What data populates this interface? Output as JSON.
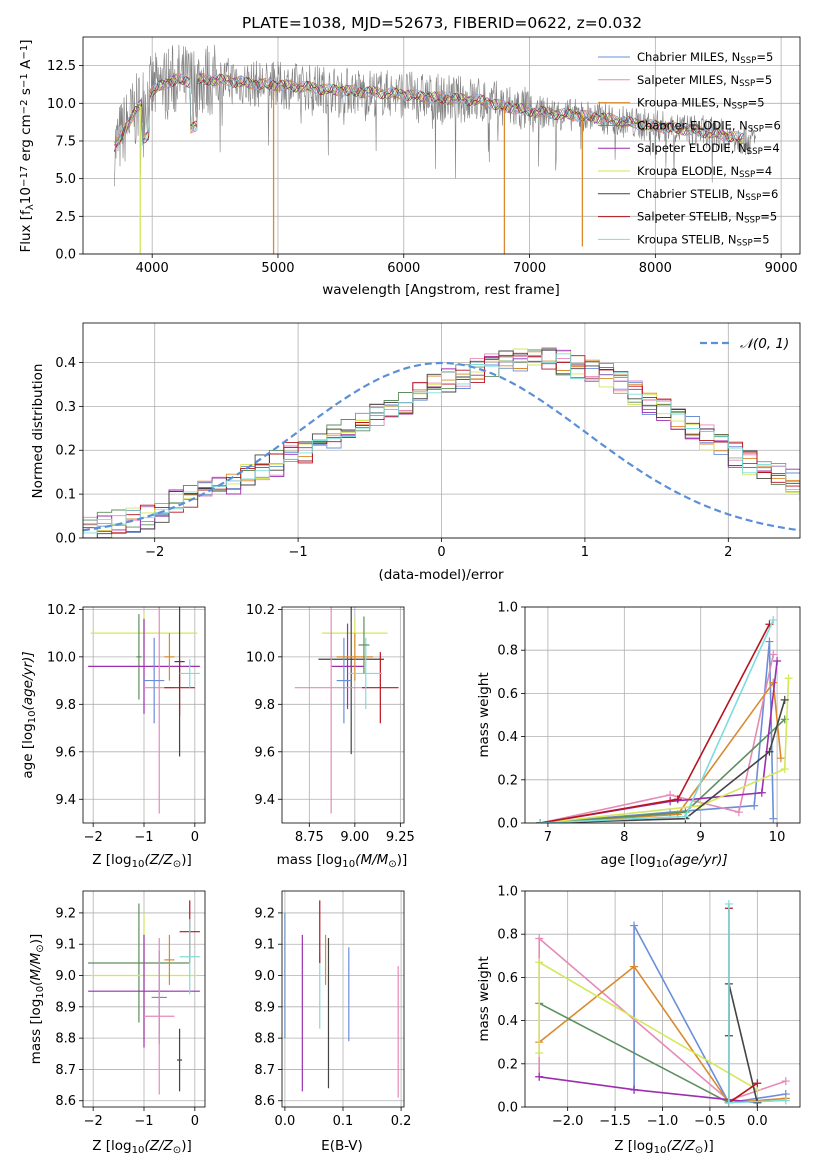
{
  "figure": {
    "title": "PLATE=1038, MJD=52673, FIBERID=0622, z=0.032"
  },
  "legend_top": [
    {
      "label": "Chabrier MILES, N",
      "sub": "SSP",
      "suffix": "=5",
      "color": "#6a8fd8"
    },
    {
      "label": "Salpeter MILES, N",
      "sub": "SSP",
      "suffix": "=5",
      "color": "#e68ab8"
    },
    {
      "label": "Kroupa MILES, N",
      "sub": "SSP",
      "suffix": "=5",
      "color": "#d98a2e"
    },
    {
      "label": "Chabrier ELODIE, N",
      "sub": "SSP",
      "suffix": "=6",
      "color": "#5e8f5e"
    },
    {
      "label": "Salpeter ELODIE, N",
      "sub": "SSP",
      "suffix": "=4",
      "color": "#9b2fae"
    },
    {
      "label": "Kroupa ELODIE, N",
      "sub": "SSP",
      "suffix": "=4",
      "color": "#d4e65a"
    },
    {
      "label": "Chabrier STELIB, N",
      "sub": "SSP",
      "suffix": "=6",
      "color": "#444444"
    },
    {
      "label": "Salpeter STELIB, N",
      "sub": "SSP",
      "suffix": "=5",
      "color": "#b8141e"
    },
    {
      "label": "Kroupa STELIB, N",
      "sub": "SSP",
      "suffix": "=5",
      "color": "#7fdcdc"
    }
  ],
  "legend_hist": {
    "label": "𝒩(0, 1)",
    "color": "#5b8fd8"
  },
  "chart_data": [
    {
      "type": "line",
      "name": "spectrum",
      "xlabel": "wavelength [Angstrom, rest frame]",
      "ylabel_parts": [
        "Flux [f",
        "λ",
        "10",
        "−17",
        " erg cm",
        "−2",
        " s",
        "−1",
        " A",
        "−1",
        "]"
      ],
      "xlim": [
        3450,
        9150
      ],
      "ylim": [
        0,
        14.4
      ],
      "xticks": [
        4000,
        5000,
        6000,
        7000,
        8000,
        9000
      ],
      "yticks": [
        0.0,
        2.5,
        5.0,
        7.5,
        10.0,
        12.5
      ],
      "ytick_labels": [
        "0.0",
        "2.5",
        "5.0",
        "7.5",
        "10.0",
        "12.5"
      ],
      "continuum": {
        "x": [
          3700,
          3800,
          3900,
          4000,
          4100,
          4200,
          4300,
          4400,
          4600,
          4800,
          5000,
          5200,
          5400,
          5600,
          5800,
          6000,
          6200,
          6400,
          6600,
          6800,
          7000,
          7200,
          7400,
          7600,
          7800,
          8000,
          8200,
          8400,
          8600,
          8800
        ],
        "y": [
          7.0,
          8.6,
          9.8,
          10.8,
          11.3,
          11.6,
          11.4,
          11.6,
          11.5,
          11.3,
          11.2,
          11.1,
          10.9,
          10.8,
          10.7,
          10.6,
          10.4,
          10.3,
          10.2,
          9.8,
          9.5,
          9.3,
          9.2,
          9.0,
          8.7,
          8.5,
          8.3,
          8.1,
          7.8,
          7.5
        ]
      },
      "dips": [
        {
          "series": "Kroupa ELODIE",
          "x": 3905,
          "y": 0.0
        },
        {
          "series": "Kroupa MILES",
          "x": 4965,
          "y": 0.0
        },
        {
          "series": "Kroupa MILES",
          "x": 6800,
          "y": 0.0
        },
        {
          "series": "Kroupa MILES",
          "x": 7420,
          "y": 0.5
        }
      ]
    },
    {
      "type": "line",
      "name": "residual histogram",
      "xlabel": "(data-model)/error",
      "ylabel": "Normed distribution",
      "xlim": [
        -2.5,
        2.5
      ],
      "ylim": [
        0,
        0.49
      ],
      "xticks": [
        -2,
        -1,
        0,
        1,
        2
      ],
      "xtick_labels": [
        "−2",
        "−1",
        "0",
        "1",
        "2"
      ],
      "yticks": [
        0.0,
        0.1,
        0.2,
        0.3,
        0.4
      ],
      "ytick_labels": [
        "0.0",
        "0.1",
        "0.2",
        "0.3",
        "0.4"
      ],
      "bin_width": 0.1,
      "bin_start": -2.5,
      "base_counts": [
        0.02,
        0.03,
        0.04,
        0.04,
        0.05,
        0.06,
        0.08,
        0.09,
        0.1,
        0.12,
        0.13,
        0.15,
        0.16,
        0.17,
        0.19,
        0.2,
        0.22,
        0.23,
        0.25,
        0.27,
        0.28,
        0.3,
        0.31,
        0.33,
        0.35,
        0.36,
        0.37,
        0.38,
        0.39,
        0.4,
        0.41,
        0.42,
        0.41,
        0.4,
        0.39,
        0.38,
        0.37,
        0.35,
        0.33,
        0.31,
        0.29,
        0.27,
        0.25,
        0.23,
        0.21,
        0.19,
        0.17,
        0.16,
        0.14,
        0.13,
        0.11,
        0.1,
        0.09,
        0.08,
        0.07,
        0.06,
        0.05,
        0.04,
        0.04,
        0.03
      ]
    },
    {
      "type": "scatter",
      "name": "age vs Z",
      "xlabel_parts": [
        "Z [log",
        "10",
        "(Z/Z",
        "⊙",
        ")]"
      ],
      "ylabel_parts": [
        "age  [log",
        "10",
        "(age/yr)]"
      ],
      "xlim": [
        -2.2,
        0.2
      ],
      "ylim": [
        9.3,
        10.21
      ],
      "xticks": [
        -2,
        -1,
        0
      ],
      "xtick_labels": [
        "−2",
        "−1",
        "0"
      ],
      "yticks": [
        9.4,
        9.6,
        9.8,
        10.0,
        10.2
      ],
      "ytick_labels": [
        "9.4",
        "9.6",
        "9.8",
        "10.0",
        "10.2"
      ],
      "points": [
        {
          "series": "Kroupa ELODIE",
          "x": -1.0,
          "y": 10.1,
          "xerr": 1.05,
          "yerr": 0.08
        },
        {
          "series": "Chabrier ELODIE",
          "x": -1.1,
          "y": 10.0,
          "xerr": 0.05,
          "yerr": 0.18
        },
        {
          "series": "Salpeter ELODIE",
          "x": -1.0,
          "y": 9.96,
          "xerr": 1.1,
          "yerr": 0.2
        },
        {
          "series": "Salpeter MILES",
          "x": -0.7,
          "y": 9.87,
          "xerr": 0.3,
          "yerr": 0.53
        },
        {
          "series": "Chabrier MILES",
          "x": -0.8,
          "y": 9.9,
          "xerr": 0.2,
          "yerr": 0.18
        },
        {
          "series": "Kroupa MILES",
          "x": -0.5,
          "y": 10.0,
          "xerr": 0.1,
          "yerr": 0.1
        },
        {
          "series": "Chabrier STELIB",
          "x": -0.3,
          "y": 9.98,
          "xerr": 0.1,
          "yerr": 0.4
        },
        {
          "series": "Salpeter STELIB",
          "x": -0.3,
          "y": 9.87,
          "xerr": 0.3,
          "yerr": 0.12
        },
        {
          "series": "Kroupa STELIB",
          "x": -0.1,
          "y": 9.93,
          "xerr": 0.2,
          "yerr": 0.06
        }
      ]
    },
    {
      "type": "scatter",
      "name": "age vs mass",
      "xlabel_parts": [
        "mass [log",
        "10",
        "(M/M",
        "⊙",
        ")]"
      ],
      "xlim": [
        8.6,
        9.27
      ],
      "ylim": [
        9.3,
        10.21
      ],
      "xticks": [
        8.75,
        9.0,
        9.25
      ],
      "xtick_labels": [
        "8.75",
        "9.00",
        "9.25"
      ],
      "yticks": [
        9.4,
        9.6,
        9.8,
        10.0,
        10.2
      ],
      "ytick_labels": [
        "9.4",
        "9.6",
        "9.8",
        "10.0",
        "10.2"
      ],
      "points": [
        {
          "series": "Kroupa ELODIE",
          "x": 9.0,
          "y": 10.1,
          "xerr": 0.18,
          "yerr": 0.06
        },
        {
          "series": "Chabrier STELIB",
          "x": 8.98,
          "y": 9.99,
          "xerr": 0.18,
          "yerr": 0.4
        },
        {
          "series": "Salpeter ELODIE",
          "x": 8.96,
          "y": 9.96,
          "xerr": 0.09,
          "yerr": 0.18
        },
        {
          "series": "Salpeter MILES",
          "x": 8.87,
          "y": 9.87,
          "xerr": 0.2,
          "yerr": 0.53
        },
        {
          "series": "Chabrier MILES",
          "x": 8.94,
          "y": 9.9,
          "xerr": 0.04,
          "yerr": 0.18
        },
        {
          "series": "Kroupa MILES",
          "x": 9.0,
          "y": 10.0,
          "xerr": 0.1,
          "yerr": 0.1
        },
        {
          "series": "Salpeter STELIB",
          "x": 9.14,
          "y": 9.87,
          "xerr": 0.1,
          "yerr": 0.15
        },
        {
          "series": "Kroupa STELIB",
          "x": 9.06,
          "y": 9.93,
          "xerr": 0.09,
          "yerr": 0.15
        },
        {
          "series": "Chabrier ELODIE",
          "x": 9.05,
          "y": 10.05,
          "xerr": 0.03,
          "yerr": 0.12
        }
      ]
    },
    {
      "type": "line",
      "name": "mass weight vs age",
      "xlabel_parts": [
        "age  [log",
        "10",
        "(age/yr)]"
      ],
      "ylabel": "mass weight",
      "xlim": [
        6.7,
        10.3
      ],
      "ylim": [
        0,
        1.0
      ],
      "xticks": [
        7,
        8,
        9,
        10
      ],
      "xtick_labels": [
        "7",
        "8",
        "9",
        "10"
      ],
      "yticks": [
        0.0,
        0.2,
        0.4,
        0.6,
        0.8,
        1.0
      ],
      "ytick_labels": [
        "0.0",
        "0.2",
        "0.4",
        "0.6",
        "0.8",
        "1.0"
      ],
      "series": [
        {
          "name": "Chabrier MILES",
          "x": [
            6.9,
            8.6,
            9.7,
            9.9,
            9.95
          ],
          "y": [
            0.0,
            0.05,
            0.08,
            0.84,
            0.02
          ]
        },
        {
          "name": "Salpeter MILES",
          "x": [
            6.9,
            8.6,
            9.5,
            9.95
          ],
          "y": [
            0.0,
            0.13,
            0.05,
            0.78
          ]
        },
        {
          "name": "Kroupa MILES",
          "x": [
            6.9,
            8.7,
            9.95,
            10.05
          ],
          "y": [
            0.0,
            0.04,
            0.65,
            0.3
          ]
        },
        {
          "name": "Chabrier ELODIE",
          "x": [
            6.9,
            8.8,
            10.1
          ],
          "y": [
            0.0,
            0.05,
            0.48
          ]
        },
        {
          "name": "Salpeter ELODIE",
          "x": [
            6.9,
            8.6,
            9.8,
            10.0
          ],
          "y": [
            0.0,
            0.1,
            0.14,
            0.75
          ]
        },
        {
          "name": "Kroupa ELODIE",
          "x": [
            6.9,
            9.0,
            10.1,
            10.15
          ],
          "y": [
            0.0,
            0.08,
            0.25,
            0.67
          ]
        },
        {
          "name": "Chabrier STELIB",
          "x": [
            6.9,
            8.8,
            9.9,
            10.1
          ],
          "y": [
            0.0,
            0.02,
            0.33,
            0.57
          ]
        },
        {
          "name": "Salpeter STELIB",
          "x": [
            6.9,
            8.7,
            9.9
          ],
          "y": [
            0.0,
            0.11,
            0.92
          ]
        },
        {
          "name": "Kroupa STELIB",
          "x": [
            6.9,
            8.8,
            9.95
          ],
          "y": [
            0.0,
            0.03,
            0.94
          ]
        }
      ]
    },
    {
      "type": "scatter",
      "name": "mass vs Z",
      "xlabel_parts": [
        "Z [log",
        "10",
        "(Z/Z",
        "⊙",
        ")]"
      ],
      "ylabel_parts": [
        "mass [log",
        "10",
        "(M/M",
        "⊙",
        ")]"
      ],
      "xlim": [
        -2.2,
        0.2
      ],
      "ylim": [
        8.58,
        9.27
      ],
      "xticks": [
        -2,
        -1,
        0
      ],
      "xtick_labels": [
        "−2",
        "−1",
        "0"
      ],
      "yticks": [
        8.6,
        8.7,
        8.8,
        8.9,
        9.0,
        9.1,
        9.2
      ],
      "ytick_labels": [
        "8.6",
        "8.7",
        "8.8",
        "8.9",
        "9.0",
        "9.1",
        "9.2"
      ],
      "points": [
        {
          "series": "Chabrier ELODIE",
          "x": -1.1,
          "y": 9.04,
          "xerr": 1.0,
          "yerr": 0.19
        },
        {
          "series": "Kroupa ELODIE",
          "x": -1.0,
          "y": 9.0,
          "xerr": 1.05,
          "yerr": 0.2
        },
        {
          "series": "Salpeter ELODIE",
          "x": -1.0,
          "y": 8.95,
          "xerr": 1.1,
          "yerr": 0.18
        },
        {
          "series": "Chabrier MILES",
          "x": -0.7,
          "y": 8.93,
          "xerr": 0.15,
          "yerr": 0.15
        },
        {
          "series": "Salpeter MILES",
          "x": -0.7,
          "y": 8.87,
          "xerr": 0.3,
          "yerr": 0.25
        },
        {
          "series": "Kroupa MILES",
          "x": -0.5,
          "y": 9.05,
          "xerr": 0.1,
          "yerr": 0.08
        },
        {
          "series": "Chabrier STELIB",
          "x": -0.3,
          "y": 8.73,
          "xerr": 0.05,
          "yerr": 0.1
        },
        {
          "series": "Salpeter STELIB",
          "x": -0.1,
          "y": 9.14,
          "xerr": 0.2,
          "yerr": 0.1
        },
        {
          "series": "Kroupa STELIB",
          "x": -0.1,
          "y": 9.06,
          "xerr": 0.2,
          "yerr": 0.12
        }
      ]
    },
    {
      "type": "scatter",
      "name": "mass vs E(B-V)",
      "xlabel": "E(B-V)",
      "xlim": [
        -0.005,
        0.205
      ],
      "ylim": [
        8.58,
        9.27
      ],
      "xticks": [
        0.0,
        0.1,
        0.2
      ],
      "xtick_labels": [
        "0.0",
        "0.1",
        "0.2"
      ],
      "yticks": [
        8.6,
        8.7,
        8.8,
        8.9,
        9.0,
        9.1,
        9.2
      ],
      "ytick_labels": [
        "8.6",
        "8.7",
        "8.8",
        "8.9",
        "9.0",
        "9.1",
        "9.2"
      ],
      "points": [
        {
          "series": "Kroupa ELODIE",
          "x": 0.0,
          "y": 9.0,
          "yerr": 0.2
        },
        {
          "series": "Chabrier MILES",
          "x": 0.0,
          "y": 9.0,
          "yerr": 0.2
        },
        {
          "series": "Salpeter ELODIE",
          "x": 0.03,
          "y": 8.88,
          "yerr": 0.25
        },
        {
          "series": "Kroupa STELIB",
          "x": 0.06,
          "y": 8.95,
          "yerr": 0.12
        },
        {
          "series": "Salpeter STELIB",
          "x": 0.06,
          "y": 9.14,
          "yerr": 0.1
        },
        {
          "series": "Kroupa MILES",
          "x": 0.07,
          "y": 9.05,
          "yerr": 0.08
        },
        {
          "series": "Chabrier STELIB",
          "x": 0.075,
          "y": 8.88,
          "yerr": 0.24
        },
        {
          "series": "Chabrier MILES",
          "x": 0.11,
          "y": 8.94,
          "yerr": 0.15
        },
        {
          "series": "Salpeter MILES",
          "x": 0.195,
          "y": 8.82,
          "yerr": 0.21
        }
      ]
    },
    {
      "type": "line",
      "name": "mass weight vs Z",
      "xlabel_parts": [
        "Z [log",
        "10",
        "(Z/Z",
        "⊙",
        ")]"
      ],
      "ylabel": "mass weight",
      "xlim": [
        -2.45,
        0.45
      ],
      "ylim": [
        0,
        1.0
      ],
      "xticks": [
        -2.0,
        -1.5,
        -1.0,
        -0.5,
        0.0
      ],
      "xtick_labels": [
        "−2.0",
        "−1.5",
        "−1.0",
        "−0.5",
        "0.0"
      ],
      "yticks": [
        0.0,
        0.2,
        0.4,
        0.6,
        0.8,
        1.0
      ],
      "ytick_labels": [
        "0.0",
        "0.2",
        "0.4",
        "0.6",
        "0.8",
        "1.0"
      ],
      "series": [
        {
          "name": "Chabrier MILES",
          "x": [
            -1.3,
            -1.3,
            -0.3,
            0.3
          ],
          "y": [
            0.08,
            0.84,
            0.02,
            0.06
          ]
        },
        {
          "name": "Salpeter MILES",
          "x": [
            -2.3,
            -2.3,
            -0.3,
            0.3
          ],
          "y": [
            0.14,
            0.78,
            0.03,
            0.12
          ]
        },
        {
          "name": "Kroupa MILES",
          "x": [
            -2.3,
            -1.3,
            -0.3,
            0.3
          ],
          "y": [
            0.3,
            0.65,
            0.02,
            0.04
          ]
        },
        {
          "name": "Chabrier ELODIE",
          "x": [
            -2.3,
            -0.3
          ],
          "y": [
            0.48,
            0.02
          ]
        },
        {
          "name": "Salpeter ELODIE",
          "x": [
            -2.3,
            -1.3,
            0.0
          ],
          "y": [
            0.14,
            0.08,
            0.02
          ]
        },
        {
          "name": "Kroupa ELODIE",
          "x": [
            -2.3,
            -2.3,
            0.0
          ],
          "y": [
            0.25,
            0.67,
            0.08
          ]
        },
        {
          "name": "Chabrier STELIB",
          "x": [
            -0.3,
            -0.3,
            0.0
          ],
          "y": [
            0.33,
            0.57,
            0.02
          ]
        },
        {
          "name": "Salpeter STELIB",
          "x": [
            -0.3,
            -0.3,
            0.0
          ],
          "y": [
            0.92,
            0.02,
            0.11
          ]
        },
        {
          "name": "Kroupa STELIB",
          "x": [
            -0.3,
            -0.3,
            0.3
          ],
          "y": [
            0.94,
            0.02,
            0.03
          ]
        }
      ]
    }
  ]
}
